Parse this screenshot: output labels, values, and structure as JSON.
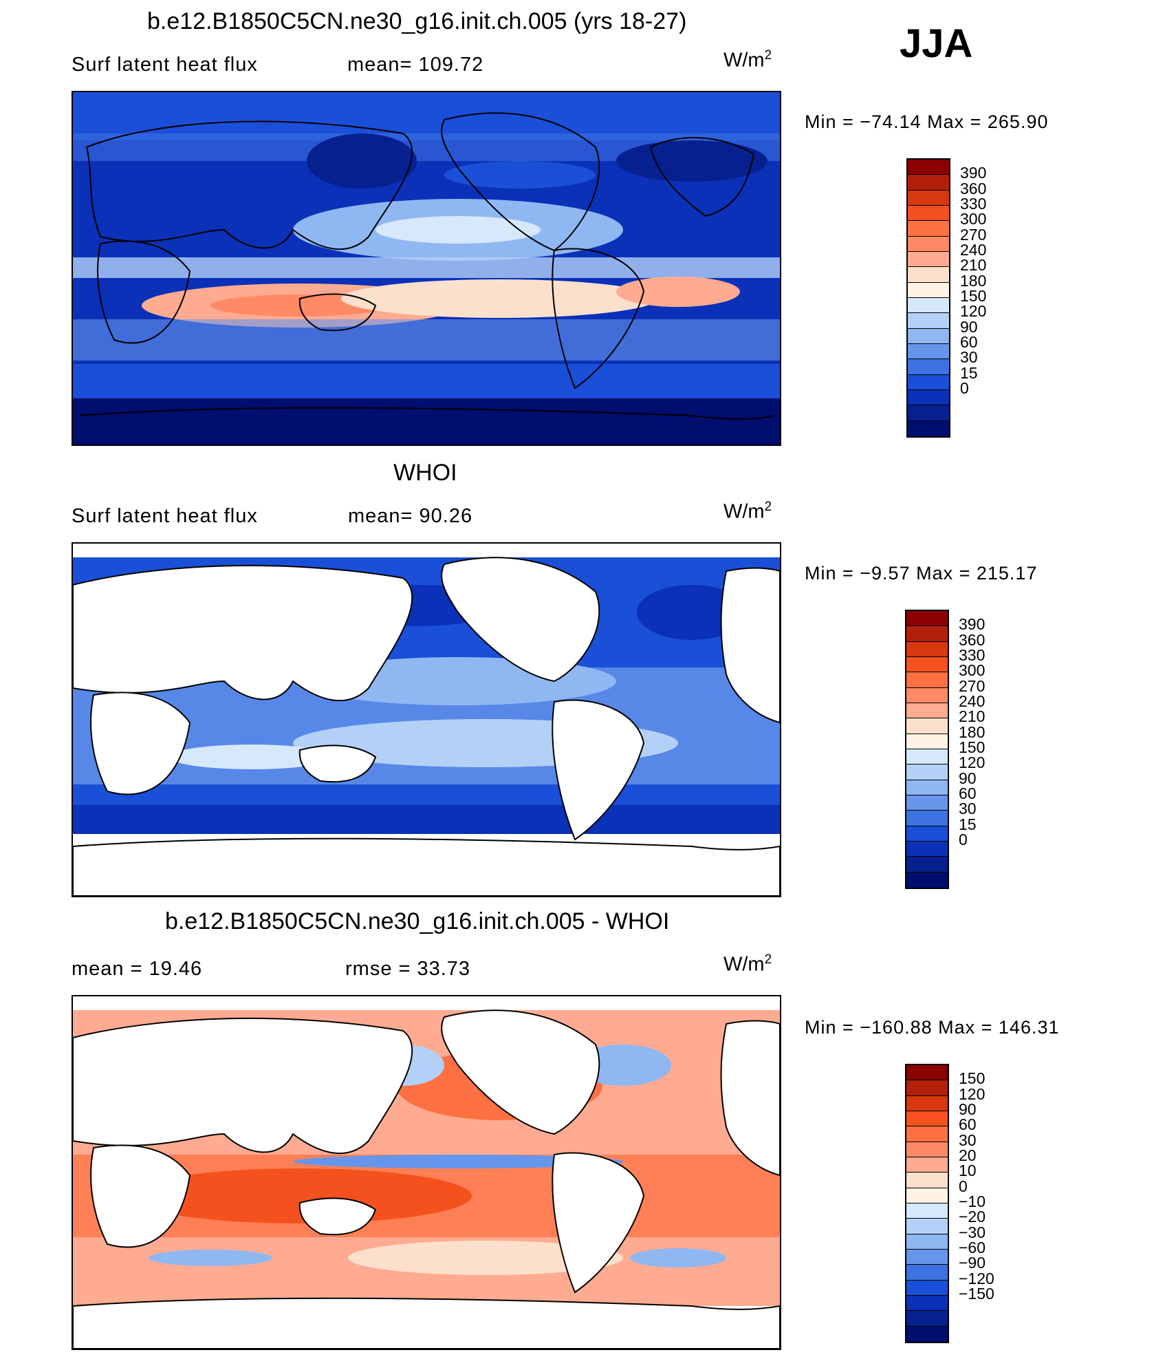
{
  "season": "JJA",
  "units_base": "W/m",
  "units_exp": "2",
  "panels": [
    {
      "title": "b.e12.B1850C5CN.ne30_g16.init.ch.005 (yrs 18-27)",
      "left_text": "Surf  latent  heat  flux",
      "mid_text": "mean=  109.72",
      "minmax": "Min  =  −74.14  Max  =  265.90",
      "colorbar": {
        "labels": [
          "390",
          "360",
          "330",
          "300",
          "270",
          "240",
          "210",
          "180",
          "150",
          "120",
          "90",
          "60",
          "30",
          "15",
          "0"
        ],
        "colors": [
          "#8b0000",
          "#b3200a",
          "#d8380f",
          "#f4511e",
          "#ff7043",
          "#ff8a65",
          "#ffab91",
          "#fde0cc",
          "#fff3e6",
          "#d6e8fb",
          "#b3d1f7",
          "#8fb7f2",
          "#6696ec",
          "#3d72e2",
          "#1a4fd8",
          "#0a31b8",
          "#06208f",
          "#000e70"
        ]
      },
      "map_style": "model"
    },
    {
      "title": "WHOI",
      "left_text": "Surf  latent  heat  flux",
      "mid_text": "mean=   90.26",
      "minmax": "Min  =   −9.57  Max  =  215.17",
      "colorbar": {
        "labels": [
          "390",
          "360",
          "330",
          "300",
          "270",
          "240",
          "210",
          "180",
          "150",
          "120",
          "90",
          "60",
          "30",
          "15",
          "0"
        ],
        "colors": [
          "#8b0000",
          "#b3200a",
          "#d8380f",
          "#f4511e",
          "#ff7043",
          "#ff8a65",
          "#ffab91",
          "#fde0cc",
          "#fff3e6",
          "#d6e8fb",
          "#b3d1f7",
          "#8fb7f2",
          "#6696ec",
          "#3d72e2",
          "#1a4fd8",
          "#0a31b8",
          "#06208f",
          "#000e70"
        ]
      },
      "map_style": "obs"
    },
    {
      "title": "b.e12.B1850C5CN.ne30_g16.init.ch.005 - WHOI",
      "left_text": "mean  =    19.46",
      "mid_text": "rmse  =    33.73",
      "minmax": "Min  =  −160.88  Max  =  146.31",
      "colorbar": {
        "labels": [
          "150",
          "120",
          "90",
          "60",
          "30",
          "20",
          "10",
          "0",
          "−10",
          "−20",
          "−30",
          "−60",
          "−90",
          "−120",
          "−150"
        ],
        "colors": [
          "#8b0000",
          "#b3200a",
          "#d8380f",
          "#f4511e",
          "#ff7043",
          "#ff8a65",
          "#ffab91",
          "#fde0cc",
          "#fff3e6",
          "#d6e8fb",
          "#b3d1f7",
          "#8fb7f2",
          "#6696ec",
          "#3d72e2",
          "#1a4fd8",
          "#0a31b8",
          "#06208f",
          "#000e70"
        ]
      },
      "map_style": "diff"
    }
  ]
}
